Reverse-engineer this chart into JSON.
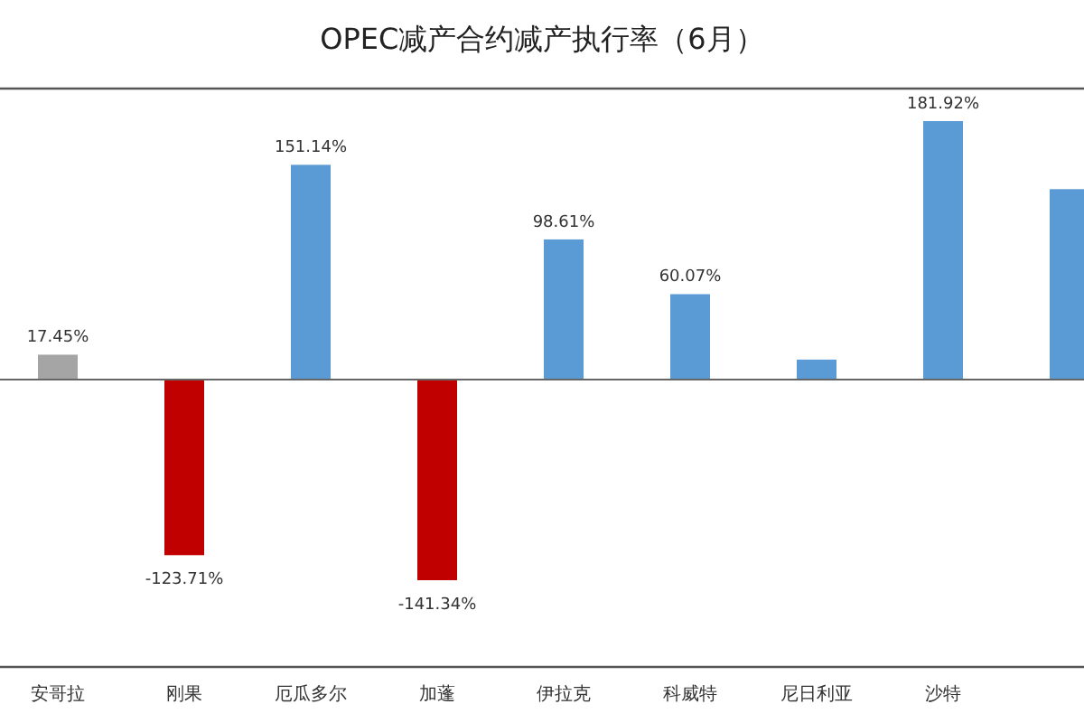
{
  "chart_data": {
    "type": "bar",
    "title": "OPEC减产合约减产执行率（6月）",
    "categories": [
      "安哥拉",
      "刚果",
      "厄瓜多尔",
      "加蓬",
      "伊拉克",
      "科威特",
      "尼日利亚",
      "沙特",
      null
    ],
    "values": [
      17.45,
      -123.71,
      151.14,
      -141.34,
      98.61,
      60.07,
      14,
      181.92,
      134
    ],
    "colors": [
      "#a5a5a5",
      "#c00000",
      "#5b9bd5",
      "#c00000",
      "#5b9bd5",
      "#5b9bd5",
      "#5b9bd5",
      "#5b9bd5",
      "#5b9bd5"
    ],
    "value_labels": [
      "17.45%",
      "-123.71%",
      "151.14%",
      "-141.34%",
      "98.61%",
      "60.07%",
      null,
      "181.92%",
      null
    ]
  }
}
